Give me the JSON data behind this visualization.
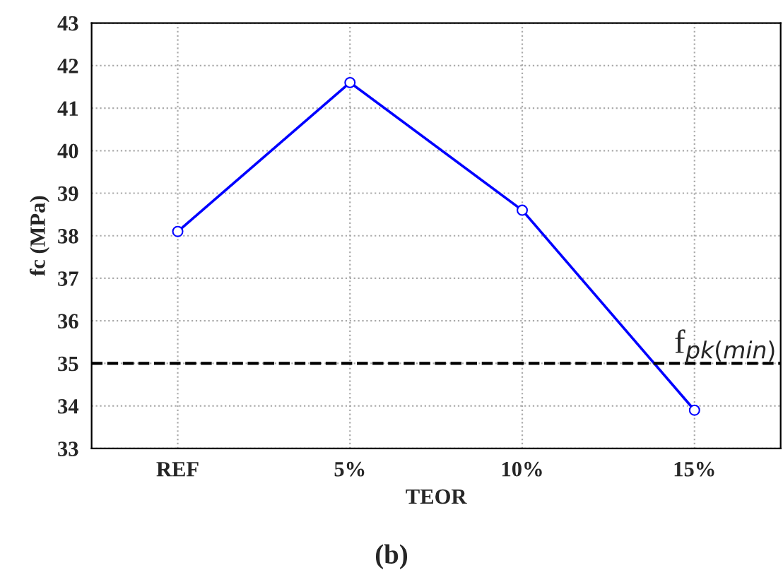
{
  "chart_data": {
    "type": "line",
    "xlabel": "TEOR",
    "ylabel": "fc (MPa)",
    "categories": [
      "REF",
      "5%",
      "10%",
      "15%"
    ],
    "series": [
      {
        "color": "#0000ff",
        "values": [
          38.1,
          41.6,
          38.6,
          33.9
        ]
      }
    ],
    "ylim": [
      33,
      43
    ],
    "yticks": [
      33,
      34,
      35,
      36,
      37,
      38,
      39,
      40,
      41,
      42,
      43
    ],
    "ref_lines": [
      {
        "axis": "y",
        "value": 35,
        "label": "f$_{pk(min)}$",
        "color": "#000000",
        "line_style": "dashed"
      }
    ],
    "annotations": [
      "(b)"
    ],
    "grid": true,
    "marker": "circle",
    "line_style": "solid",
    "legend": false
  }
}
